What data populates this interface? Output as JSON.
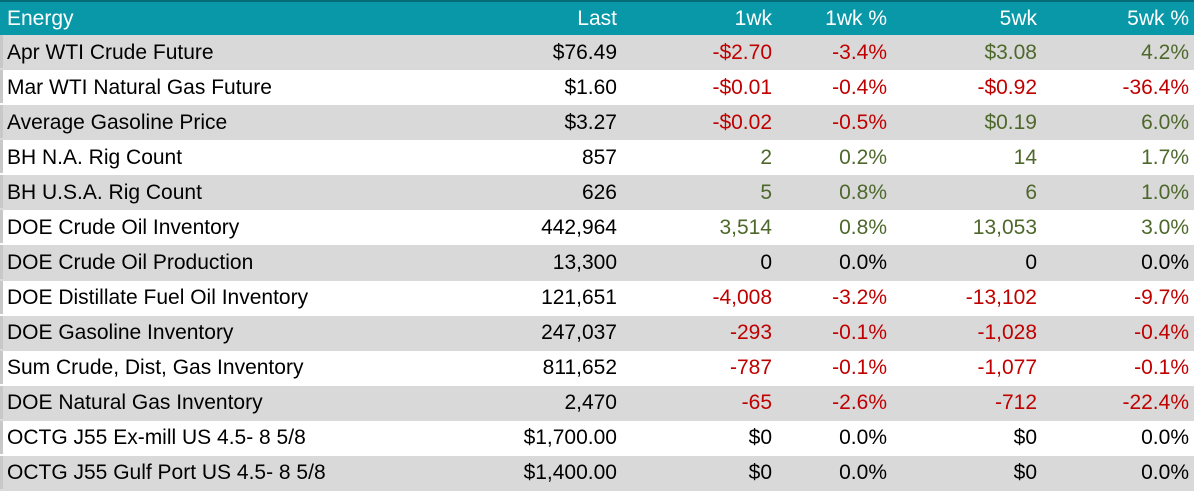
{
  "colors": {
    "header_bg": "#0898A8",
    "header_text": "#FFFFFF",
    "header_edge": "#066A77",
    "row_alt_bg": "#D9D9D9",
    "row_bg": "#FFFFFF",
    "negative": "#C00000",
    "positive": "#4E682C",
    "neutral": "#000000",
    "edge_marker": "#C8C8C8"
  },
  "table": {
    "columns": [
      "Energy",
      "Last",
      "1wk",
      "1wk %",
      "5wk",
      "5wk %"
    ],
    "rows": [
      [
        "Apr WTI Crude Future",
        "$76.49",
        "-$2.70",
        "-3.4%",
        "$3.08",
        "4.2%"
      ],
      [
        "Mar WTI Natural Gas Future",
        "$1.60",
        "-$0.01",
        "-0.4%",
        "-$0.92",
        "-36.4%"
      ],
      [
        "Average Gasoline Price",
        "$3.27",
        "-$0.02",
        "-0.5%",
        "$0.19",
        "6.0%"
      ],
      [
        "BH N.A. Rig Count",
        "857",
        "2",
        "0.2%",
        "14",
        "1.7%"
      ],
      [
        "BH U.S.A. Rig Count",
        "626",
        "5",
        "0.8%",
        "6",
        "1.0%"
      ],
      [
        "DOE Crude Oil Inventory",
        "442,964",
        "3,514",
        "0.8%",
        "13,053",
        "3.0%"
      ],
      [
        "DOE Crude Oil Production",
        "13,300",
        "0",
        "0.0%",
        "0",
        "0.0%"
      ],
      [
        "DOE Distillate Fuel Oil Inventory",
        "121,651",
        "-4,008",
        "-3.2%",
        "-13,102",
        "-9.7%"
      ],
      [
        "DOE Gasoline Inventory",
        "247,037",
        "-293",
        "-0.1%",
        "-1,028",
        "-0.4%"
      ],
      [
        "Sum Crude, Dist, Gas Inventory",
        "811,652",
        "-787",
        "-0.1%",
        "-1,077",
        "-0.1%"
      ],
      [
        "DOE Natural Gas Inventory",
        "2,470",
        "-65",
        "-2.6%",
        "-712",
        "-22.4%"
      ],
      [
        "OCTG J55 Ex-mill US 4.5- 8 5/8",
        "$1,700.00",
        "$0",
        "0.0%",
        "$0",
        "0.0%"
      ],
      [
        "OCTG J55 Gulf Port US 4.5- 8 5/8",
        "$1,400.00",
        "$0",
        "0.0%",
        "$0",
        "0.0%"
      ]
    ]
  }
}
